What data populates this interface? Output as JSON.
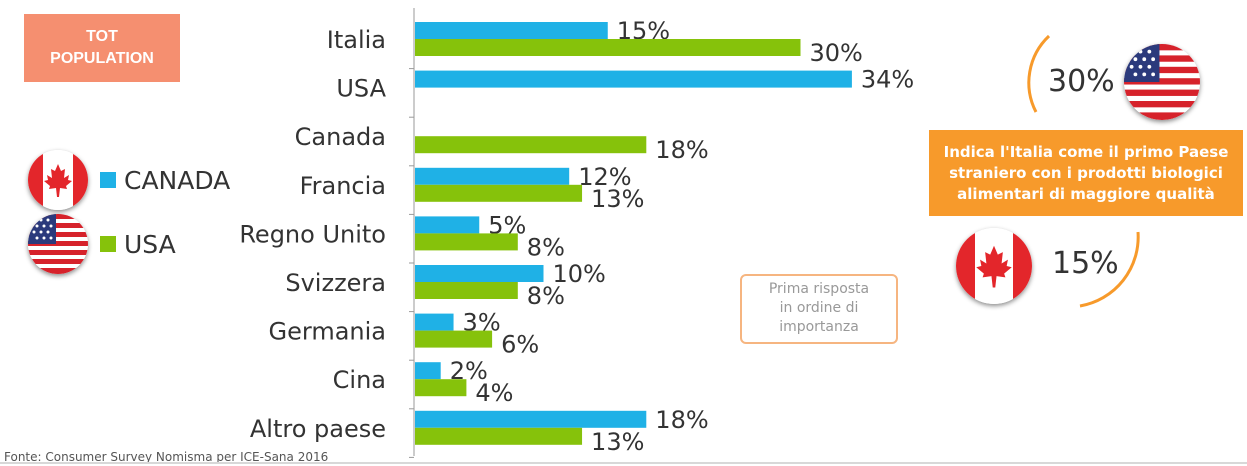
{
  "badge": {
    "line1": "TOT",
    "line2": "POPULATION"
  },
  "chart_data": {
    "type": "bar",
    "orientation": "horizontal",
    "categories": [
      "Italia",
      "USA",
      "Canada",
      "Francia",
      "Regno Unito",
      "Svizzera",
      "Germania",
      "Cina",
      "Altro paese"
    ],
    "series": [
      {
        "name": "CANADA",
        "color": "#1fb1e6",
        "values": [
          15,
          34,
          null,
          12,
          5,
          10,
          3,
          2,
          18
        ]
      },
      {
        "name": "USA",
        "color": "#86c20b",
        "values": [
          30,
          null,
          18,
          13,
          8,
          8,
          6,
          4,
          13
        ]
      }
    ],
    "value_suffix": "%",
    "xlim": [
      0,
      40
    ],
    "grid": false,
    "legend_position": "left"
  },
  "legend": [
    {
      "label": "CANADA",
      "flag": "canada-flag-icon"
    },
    {
      "label": "USA",
      "flag": "usa-flag-icon"
    }
  ],
  "callout": {
    "line1": "Indica l'Italia come il primo Paese",
    "line2": "straniero con i prodotti biologici",
    "line3": "alimentari di maggiore qualità"
  },
  "highlight": {
    "usa_pct": "30%",
    "canada_pct": "15%",
    "arc_color": "#f79a2b"
  },
  "note": {
    "line1": "Prima risposta",
    "line2": "in ordine di",
    "line3": "importanza"
  },
  "source": "Fonte: Consumer Survey Nomisma per ICE-Sana 2016"
}
